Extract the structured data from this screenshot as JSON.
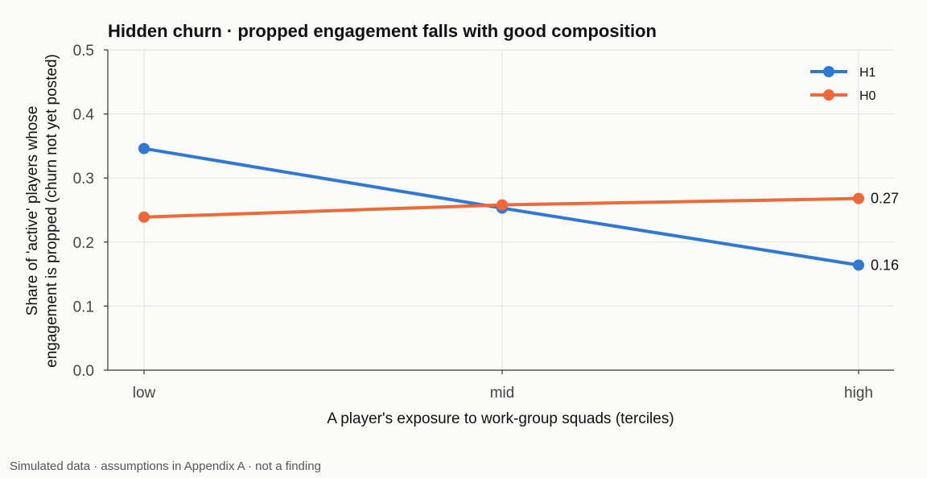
{
  "chart_data": {
    "type": "line",
    "title": "Hidden churn · propped engagement falls with good composition",
    "xlabel": "A player's exposure to work-group squads (terciles)",
    "ylabel_lines": [
      "Share of 'active' players whose",
      "engagement is propped (churn not yet posted)"
    ],
    "categories": [
      "low",
      "mid",
      "high"
    ],
    "ylim": [
      0,
      0.5
    ],
    "yticks": [
      0.0,
      0.1,
      0.2,
      0.3,
      0.4,
      0.5
    ],
    "ytick_labels": [
      "0.0",
      "0.1",
      "0.2",
      "0.3",
      "0.4",
      "0.5"
    ],
    "grid": true,
    "legend_position": "top-right",
    "series": [
      {
        "name": "H1",
        "color": "#2f78d6",
        "values": [
          0.346,
          0.253,
          0.164
        ],
        "end_label": "0.16"
      },
      {
        "name": "H0",
        "color": "#ec6a39",
        "values": [
          0.239,
          0.258,
          0.268
        ],
        "end_label": "0.27"
      }
    ],
    "footnote": "Simulated data · assumptions in Appendix A · not a finding"
  }
}
